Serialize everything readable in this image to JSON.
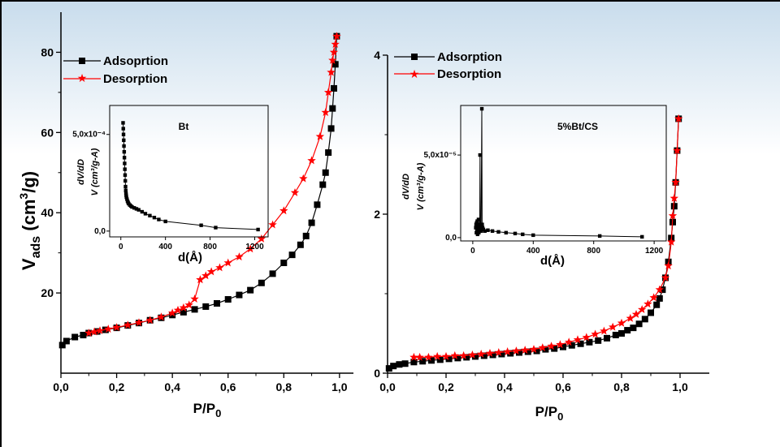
{
  "colors": {
    "adsorption": "#000000",
    "desorption": "#ff0000",
    "banner_top": "#c8dcec"
  },
  "chart_data": [
    {
      "type": "line",
      "sample": "Bt",
      "ylabel_main": "V",
      "ylabel_sub": "ads",
      "ylabel_unit_pre": " (cm",
      "ylabel_unit_sup": "3",
      "ylabel_unit_post": "/g)",
      "xlabel_main": "P/P",
      "xlabel_sub": "0",
      "xlim": [
        0,
        1.05
      ],
      "ylim": [
        0,
        90
      ],
      "xticks": [
        0,
        0.2,
        0.4,
        0.6,
        0.8,
        1.0
      ],
      "xtick_labels": [
        "0,0",
        "0,2",
        "0,4",
        "0,6",
        "0,8",
        "1,0"
      ],
      "yticks": [
        20,
        40,
        60,
        80
      ],
      "ytick_labels": [
        "20",
        "40",
        "60",
        "80"
      ],
      "legend": [
        "Adsoprtion",
        "Desorption"
      ],
      "series": [
        {
          "name": "Adsoprtion",
          "marker": "square",
          "x": [
            0.005,
            0.02,
            0.05,
            0.08,
            0.1,
            0.13,
            0.16,
            0.2,
            0.24,
            0.28,
            0.32,
            0.36,
            0.4,
            0.44,
            0.48,
            0.52,
            0.56,
            0.6,
            0.64,
            0.68,
            0.72,
            0.76,
            0.8,
            0.83,
            0.86,
            0.88,
            0.9,
            0.92,
            0.94,
            0.95,
            0.96,
            0.97,
            0.975,
            0.98,
            0.985,
            0.99
          ],
          "y": [
            7,
            8,
            9,
            9.5,
            10,
            10.4,
            10.8,
            11.3,
            11.9,
            12.5,
            13.2,
            13.8,
            14.5,
            15.2,
            15.9,
            16.6,
            17.4,
            18.4,
            19.5,
            20.7,
            22.5,
            24.8,
            27.5,
            29.5,
            32,
            34.2,
            37.5,
            42,
            47,
            50,
            55,
            61,
            66,
            71,
            77,
            84
          ]
        },
        {
          "name": "Desorption",
          "marker": "star",
          "x": [
            0.99,
            0.985,
            0.98,
            0.975,
            0.97,
            0.96,
            0.95,
            0.93,
            0.9,
            0.87,
            0.84,
            0.8,
            0.76,
            0.72,
            0.68,
            0.64,
            0.6,
            0.57,
            0.54,
            0.52,
            0.5,
            0.48,
            0.46,
            0.44,
            0.42,
            0.4,
            0.36,
            0.32,
            0.28,
            0.24,
            0.2,
            0.17,
            0.14,
            0.12,
            0.1
          ],
          "y": [
            84,
            82,
            80,
            78,
            75,
            70,
            65,
            59,
            53,
            48.5,
            45,
            40.5,
            37,
            33.5,
            31,
            29,
            27.5,
            26.3,
            25.3,
            24.3,
            23.3,
            18.5,
            17,
            16.3,
            15.7,
            15,
            14,
            13.2,
            12.6,
            12,
            11.4,
            11,
            10.6,
            10.3,
            10
          ]
        }
      ],
      "inset": {
        "label": "Bt",
        "ylabel_line1": "dV/dD",
        "ylabel_line2": "V (cm³/g-A)",
        "xlabel": "d(Å)",
        "xlim": [
          -100,
          1320
        ],
        "ylim": [
          -3e-05,
          0.00065
        ],
        "xticks": [
          0,
          400,
          800,
          1200
        ],
        "xtick_labels": [
          "0",
          "400",
          "800",
          "1200"
        ],
        "yticks": [
          0,
          0.0005
        ],
        "ytick_labels": [
          "0,0",
          "5,0x10⁻⁴"
        ],
        "x": [
          20,
          22,
          24,
          26,
          28,
          30,
          32,
          34,
          36,
          38,
          40,
          42,
          44,
          46,
          48,
          50,
          55,
          60,
          65,
          70,
          80,
          90,
          100,
          120,
          140,
          160,
          190,
          220,
          260,
          300,
          340,
          400,
          720,
          850,
          1230
        ],
        "y": [
          0.00056,
          0.00053,
          0.0005,
          0.00047,
          0.00044,
          0.00041,
          0.00038,
          0.00035,
          0.00032,
          0.00029,
          0.00026,
          0.00023,
          0.00021,
          0.000195,
          0.000185,
          0.000175,
          0.000165,
          0.000155,
          0.000148,
          0.000142,
          0.000135,
          0.00013,
          0.000125,
          0.00012,
          0.000115,
          0.00011,
          0.0001,
          9e-05,
          8e-05,
          7e-05,
          6e-05,
          5e-05,
          3e-05,
          1.8e-05,
          8e-06
        ]
      }
    },
    {
      "type": "line",
      "sample": "5%Bt/CS",
      "xlabel_main": "P/P",
      "xlabel_sub": "0",
      "xlim": [
        0,
        1.1
      ],
      "ylim": [
        0,
        4
      ],
      "xticks": [
        0,
        0.2,
        0.4,
        0.6,
        0.8,
        1.0
      ],
      "xtick_labels": [
        "0,0",
        "0,2",
        "0,4",
        "0,6",
        "0,8",
        "1,0"
      ],
      "yticks": [
        0,
        2,
        4
      ],
      "ytick_labels": [
        "0",
        "2",
        "4"
      ],
      "legend": [
        "Adsorption",
        "Desorption"
      ],
      "series": [
        {
          "name": "Adsorption",
          "marker": "square",
          "x": [
            0.005,
            0.02,
            0.04,
            0.06,
            0.09,
            0.12,
            0.15,
            0.18,
            0.21,
            0.24,
            0.27,
            0.3,
            0.33,
            0.36,
            0.39,
            0.42,
            0.45,
            0.48,
            0.51,
            0.54,
            0.57,
            0.6,
            0.63,
            0.66,
            0.69,
            0.72,
            0.75,
            0.78,
            0.8,
            0.82,
            0.84,
            0.86,
            0.88,
            0.9,
            0.92,
            0.93,
            0.94,
            0.95,
            0.96,
            0.97,
            0.975,
            0.98,
            0.985,
            0.99,
            0.995
          ],
          "y": [
            0.06,
            0.09,
            0.11,
            0.12,
            0.14,
            0.15,
            0.16,
            0.17,
            0.18,
            0.19,
            0.2,
            0.21,
            0.22,
            0.23,
            0.24,
            0.25,
            0.26,
            0.27,
            0.28,
            0.3,
            0.31,
            0.33,
            0.35,
            0.37,
            0.39,
            0.41,
            0.44,
            0.48,
            0.5,
            0.54,
            0.57,
            0.62,
            0.68,
            0.76,
            0.86,
            0.94,
            1.05,
            1.2,
            1.4,
            1.7,
            1.9,
            2.1,
            2.4,
            2.8,
            3.2
          ]
        },
        {
          "name": "Desorption",
          "marker": "star",
          "x": [
            0.995,
            0.99,
            0.985,
            0.98,
            0.975,
            0.97,
            0.96,
            0.95,
            0.93,
            0.91,
            0.89,
            0.87,
            0.85,
            0.83,
            0.8,
            0.77,
            0.74,
            0.71,
            0.68,
            0.65,
            0.62,
            0.59,
            0.56,
            0.53,
            0.5,
            0.47,
            0.44,
            0.41,
            0.38,
            0.35,
            0.32,
            0.29,
            0.26,
            0.23,
            0.2,
            0.17,
            0.14,
            0.11,
            0.09
          ],
          "y": [
            3.2,
            2.8,
            2.4,
            2.2,
            1.98,
            1.65,
            1.35,
            1.2,
            1.05,
            0.95,
            0.87,
            0.8,
            0.74,
            0.69,
            0.63,
            0.58,
            0.53,
            0.49,
            0.45,
            0.42,
            0.39,
            0.36,
            0.34,
            0.32,
            0.3,
            0.29,
            0.28,
            0.27,
            0.26,
            0.25,
            0.24,
            0.23,
            0.22,
            0.22,
            0.21,
            0.21,
            0.2,
            0.2,
            0.2
          ]
        }
      ],
      "inset": {
        "label": "5%Bt/CS",
        "ylabel_line1": "dV/dD",
        "ylabel_line2": "V (cm³/g-A)",
        "xlabel": "d(Å)",
        "xlim": [
          -80,
          1280
        ],
        "ylim": [
          -2e-06,
          8e-05
        ],
        "xticks": [
          0,
          400,
          800,
          1200
        ],
        "xtick_labels": [
          "0",
          "400",
          "800",
          "1200"
        ],
        "yticks": [
          0,
          5e-05
        ],
        "ytick_labels": [
          "0,0",
          "5,0x10⁻⁵"
        ],
        "x": [
          20,
          22,
          24,
          26,
          28,
          30,
          32,
          34,
          36,
          38,
          40,
          42,
          44,
          46,
          48,
          50,
          52,
          55,
          60,
          62,
          65,
          70,
          80,
          100,
          130,
          170,
          220,
          280,
          330,
          400,
          840,
          1120
        ],
        "y": [
          6e-06,
          8e-06,
          3e-06,
          9e-06,
          5e-06,
          1e-05,
          2e-06,
          7e-06,
          4e-06,
          1.1e-05,
          3e-06,
          8e-06,
          6e-06,
          4e-06,
          5e-05,
          7e-06,
          5e-06,
          4e-06,
          7.8e-05,
          8e-06,
          6e-06,
          5e-06,
          4e-06,
          4.5e-06,
          4e-06,
          3.5e-06,
          3e-06,
          2.5e-06,
          2e-06,
          1.5e-06,
          1e-06,
          5e-07
        ]
      }
    }
  ]
}
